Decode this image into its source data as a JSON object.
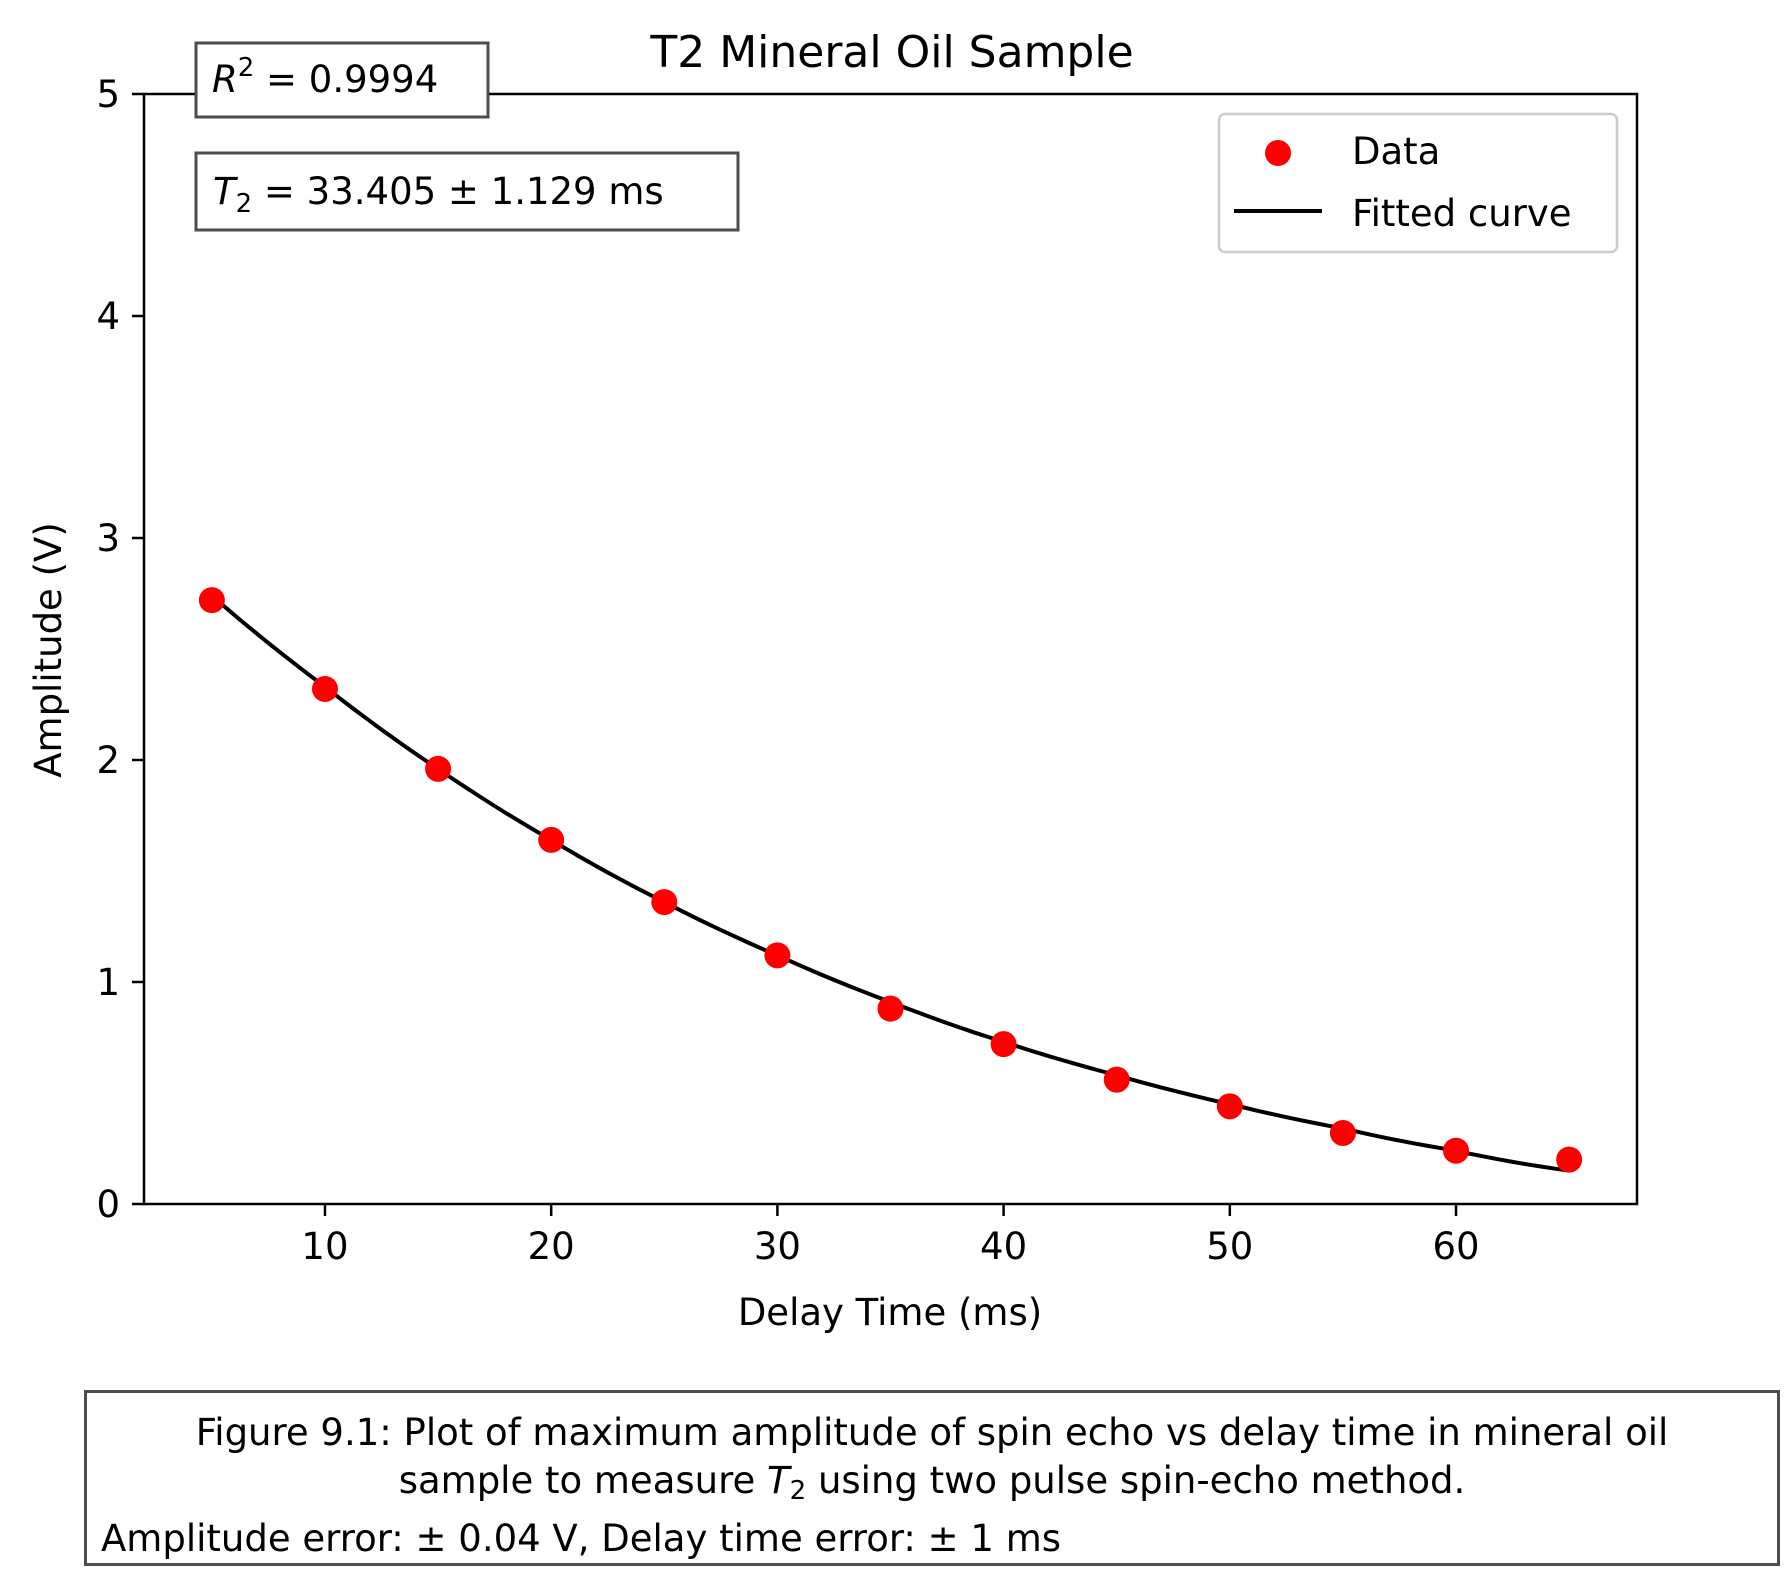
{
  "chart_data": {
    "type": "scatter",
    "title": "T2 Mineral Oil Sample",
    "xlabel": "Delay Time (ms)",
    "ylabel": "Amplitude (V)",
    "xlim": [
      2,
      68
    ],
    "ylim": [
      0,
      5
    ],
    "xticks": [
      10,
      20,
      30,
      40,
      50,
      60
    ],
    "yticks": [
      0,
      1,
      2,
      3,
      4,
      5
    ],
    "grid": false,
    "legend_position": "top-right",
    "series": [
      {
        "name": "Data",
        "kind": "scatter",
        "color": "#ff0000",
        "x": [
          5,
          10,
          15,
          20,
          25,
          30,
          35,
          40,
          45,
          50,
          55,
          60,
          65
        ],
        "y": [
          2.72,
          2.32,
          1.96,
          1.64,
          1.36,
          1.12,
          0.88,
          0.72,
          0.56,
          0.44,
          0.32,
          0.24,
          0.2
        ]
      },
      {
        "name": "Fitted curve",
        "kind": "line",
        "color": "#000000",
        "x": [
          5,
          10,
          15,
          20,
          25,
          30,
          35,
          40,
          45,
          50,
          55,
          60,
          65
        ],
        "y": [
          2.74,
          2.33,
          1.96,
          1.64,
          1.36,
          1.12,
          0.91,
          0.73,
          0.58,
          0.45,
          0.34,
          0.24,
          0.15
        ]
      }
    ],
    "annotations": {
      "r2_symbol": "R",
      "r2_sup": "2",
      "r2_text": " = 0.9994",
      "t2_symbol": "T",
      "t2_sub": "2",
      "t2_text": " = 33.405 ± 1.129 ms"
    }
  },
  "caption": {
    "line1": "Figure 9.1: Plot of maximum amplitude of spin echo vs delay time in mineral oil",
    "line2_pre": "sample to measure ",
    "line2_sym": "T",
    "line2_sub": "2",
    "line2_post": " using two pulse spin-echo method.",
    "line3": "Amplitude error: ± 0.04 V, Delay time error: ± 1 ms"
  }
}
